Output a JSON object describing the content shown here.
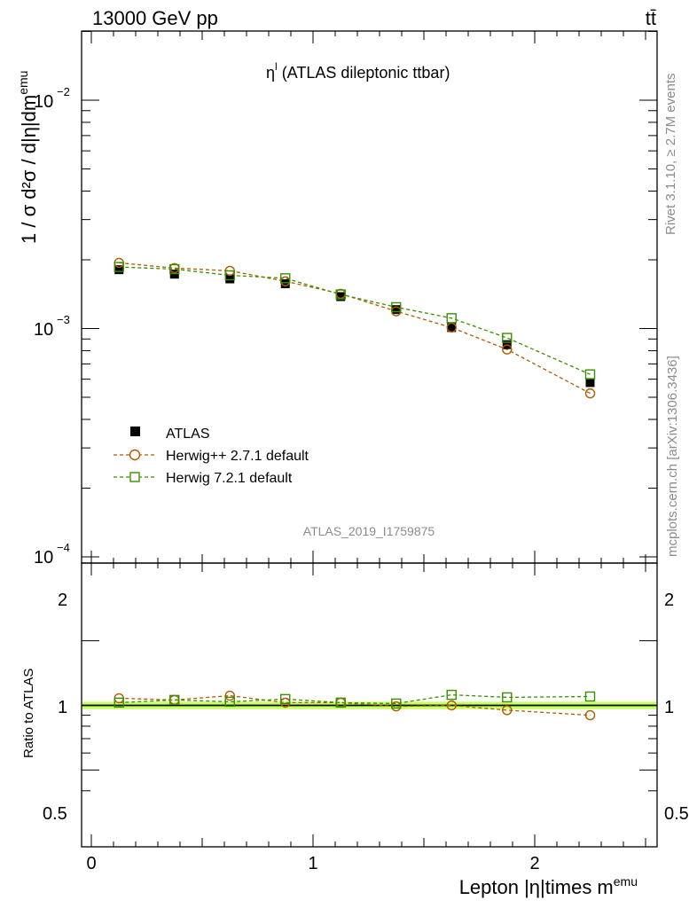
{
  "header": {
    "left": "13000 GeV pp",
    "right": "tt̄"
  },
  "side_labels": {
    "rivet": "Rivet 3.1.10, ≥ 2.7M events",
    "mcplots": "mcplots.cern.ch [arXiv:1306.3436]"
  },
  "chart_data": {
    "type": "scatter",
    "title_main": "η",
    "title_sup": "l",
    "title_rest": " (ATLAS dileptonic ttbar)",
    "watermark": "ATLAS_2019_I1759875",
    "ylabel": "1 / σ d²σ / d|η|dm",
    "ylabel_sup": "emu",
    "xlabel": "Lepton |η|times m",
    "xlabel_sup": "emu",
    "xlim": [
      -0.05,
      2.55
    ],
    "ylim": [
      0.0001,
      0.02
    ],
    "yscale": "log",
    "ratio_ylabel": "Ratio to ATLAS",
    "ratio_ylim": [
      0.35,
      2.45
    ],
    "x_tick_labels": [
      "0",
      "1",
      "2"
    ],
    "y_tick_labels": [
      "10",
      "10",
      "10"
    ],
    "y_tick_exponents": [
      "−2",
      "−3",
      "−4"
    ],
    "ratio_tick_labels": [
      "2",
      "1",
      "0.5"
    ],
    "x": [
      0.125,
      0.375,
      0.625,
      0.875,
      1.125,
      1.375,
      1.625,
      1.875,
      2.25
    ],
    "series": [
      {
        "name": "ATLAS",
        "color": "#000000",
        "marker": "square-filled",
        "values": [
          0.00181,
          0.00173,
          0.00165,
          0.00157,
          0.00138,
          0.00121,
          0.00101,
          0.00085,
          0.00058
        ]
      },
      {
        "name": "Herwig++ 2.7.1 default",
        "color": "#b35900",
        "marker": "circle-open",
        "values": [
          0.00194,
          0.00184,
          0.00179,
          0.00161,
          0.00142,
          0.00119,
          0.00101,
          0.00081,
          0.00052
        ],
        "ratio": [
          1.08,
          1.06,
          1.11,
          1.03,
          1.03,
          0.99,
          1.0,
          0.95,
          0.9
        ]
      },
      {
        "name": "Herwig 7.2.1 default",
        "color": "#3a8f00",
        "marker": "square-open",
        "values": [
          0.00186,
          0.00182,
          0.00171,
          0.00166,
          0.00141,
          0.00124,
          0.00111,
          0.00091,
          0.00063
        ],
        "ratio": [
          1.03,
          1.06,
          1.04,
          1.07,
          1.03,
          1.02,
          1.12,
          1.09,
          1.1
        ]
      }
    ],
    "ratio_band_color": "#ccff66",
    "ratio_band_inner_color": "#66cc33"
  }
}
